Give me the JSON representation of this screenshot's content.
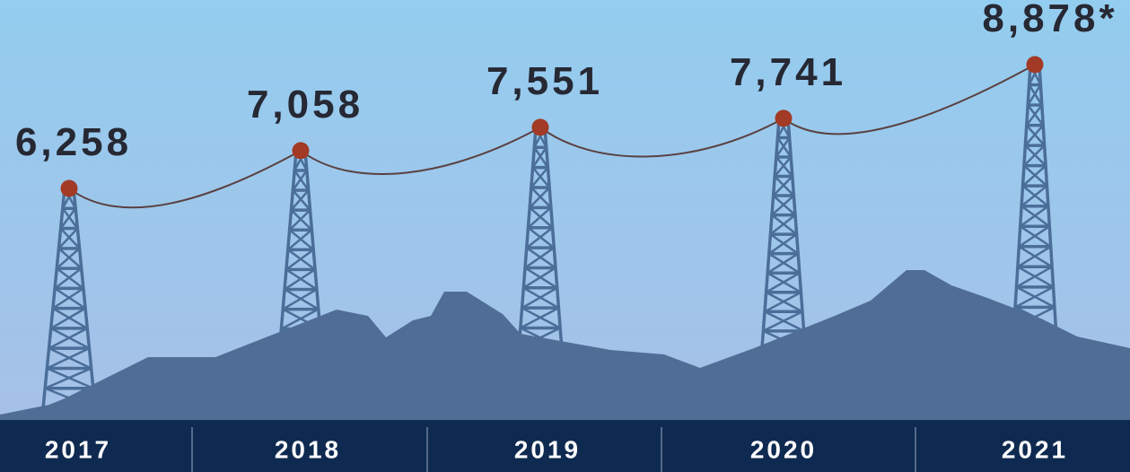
{
  "chart_data": {
    "type": "line",
    "categories": [
      "2017",
      "2018",
      "2019",
      "2020",
      "2021"
    ],
    "values": [
      6258,
      7058,
      7551,
      7741,
      8878
    ],
    "value_labels": [
      "6,258",
      "7,058",
      "7,551",
      "7,741",
      "8,878*"
    ],
    "color": "#a23a26"
  }
}
